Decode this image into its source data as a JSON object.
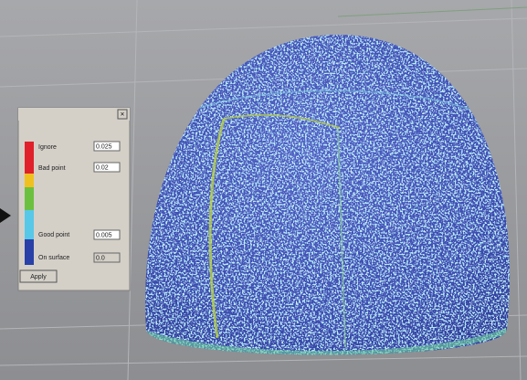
{
  "panel": {
    "labels": [
      "Ignore",
      "Bad point",
      "Good point",
      "On surface"
    ],
    "fields": [
      "0.025",
      "0.02",
      "0.005",
      "0.0"
    ],
    "button": "Apply"
  }
}
